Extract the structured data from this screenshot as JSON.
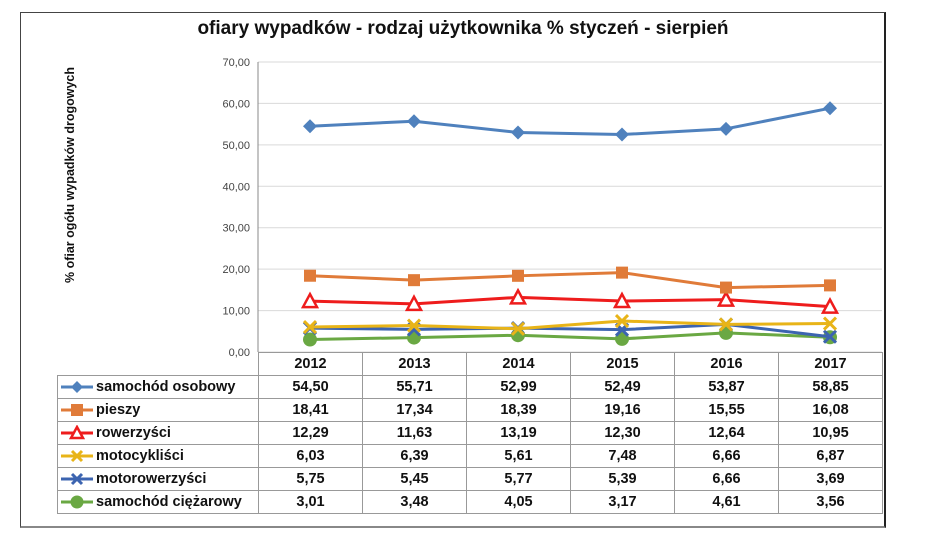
{
  "chart_data": {
    "type": "line",
    "title": "ofiary wypadków - rodzaj użytkownika % styczeń - sierpień",
    "xlabel": "",
    "ylabel": "% ofiar ogółu wypadków drogowych",
    "ylim": [
      0,
      70
    ],
    "yticks": [
      "0,00",
      "10,00",
      "20,00",
      "30,00",
      "40,00",
      "50,00",
      "60,00",
      "70,00"
    ],
    "grid": true,
    "legend": "data-table-bottom",
    "categories": [
      "2012",
      "2013",
      "2014",
      "2015",
      "2016",
      "2017"
    ],
    "series": [
      {
        "name": "samochód osobowy",
        "color": "#4f81bd",
        "marker": "diamond",
        "values": [
          54.5,
          55.71,
          52.99,
          52.49,
          53.87,
          58.85
        ],
        "labels": [
          "54,50",
          "55,71",
          "52,99",
          "52,49",
          "53,87",
          "58,85"
        ]
      },
      {
        "name": "pieszy",
        "color": "#e07b39",
        "marker": "square",
        "values": [
          18.41,
          17.34,
          18.39,
          19.16,
          15.55,
          16.08
        ],
        "labels": [
          "18,41",
          "17,34",
          "18,39",
          "19,16",
          "15,55",
          "16,08"
        ]
      },
      {
        "name": "rowerzyści",
        "color": "#ee1c1c",
        "marker": "triangle",
        "values": [
          12.29,
          11.63,
          13.19,
          12.3,
          12.64,
          10.95
        ],
        "labels": [
          "12,29",
          "11,63",
          "13,19",
          "12,30",
          "12,64",
          "10,95"
        ]
      },
      {
        "name": "motocykliści",
        "color": "#e8b418",
        "marker": "x",
        "values": [
          6.03,
          6.39,
          5.61,
          7.48,
          6.66,
          6.87
        ],
        "labels": [
          "6,03",
          "6,39",
          "5,61",
          "7,48",
          "6,66",
          "6,87"
        ]
      },
      {
        "name": "motorowerzyści",
        "color": "#3c64b0",
        "marker": "x",
        "values": [
          5.75,
          5.45,
          5.77,
          5.39,
          6.66,
          3.69
        ],
        "labels": [
          "5,75",
          "5,45",
          "5,77",
          "5,39",
          "6,66",
          "3,69"
        ]
      },
      {
        "name": "samochód ciężarowy",
        "color": "#6aa843",
        "marker": "circle",
        "values": [
          3.01,
          3.48,
          4.05,
          3.17,
          4.61,
          3.56
        ],
        "labels": [
          "3,01",
          "3,48",
          "4,05",
          "3,17",
          "4,61",
          "3,56"
        ]
      }
    ]
  }
}
